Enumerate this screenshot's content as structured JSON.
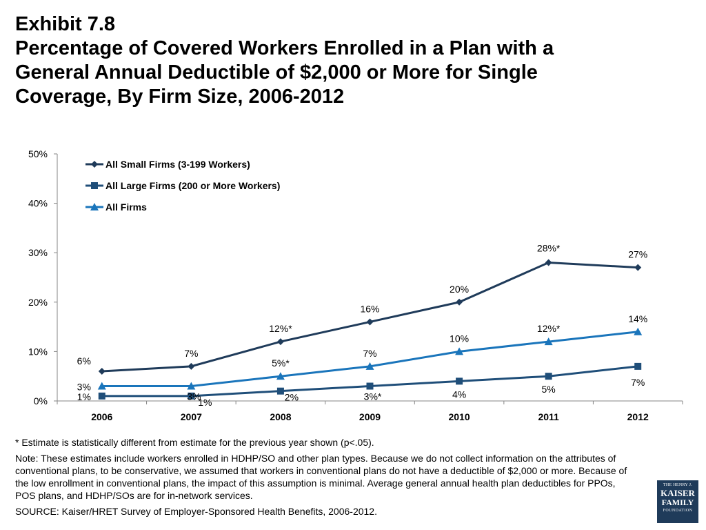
{
  "title": {
    "line1": "Exhibit 7.8",
    "line2": "Percentage of Covered Workers Enrolled in a Plan with a",
    "line3": "General Annual Deductible of $2,000 or More for Single",
    "line4": "Coverage, By Firm Size, 2006-2012"
  },
  "chart_data": {
    "type": "line",
    "categories": [
      "2006",
      "2007",
      "2008",
      "2009",
      "2010",
      "2011",
      "2012"
    ],
    "ylim": [
      0,
      50
    ],
    "yticks": [
      "0%",
      "10%",
      "20%",
      "30%",
      "40%",
      "50%"
    ],
    "legend_position": "top-left",
    "grid": false,
    "series": [
      {
        "name": "All Small Firms (3-199 Workers)",
        "color": "#1f3b5a",
        "marker": "diamond",
        "values": [
          6,
          7,
          12,
          16,
          20,
          28,
          27
        ],
        "labels": [
          "6%",
          "7%",
          "12%*",
          "16%",
          "20%",
          "28%*",
          "27%"
        ]
      },
      {
        "name": "All Large Firms (200 or More Workers)",
        "color": "#1f4e79",
        "marker": "square",
        "values": [
          1,
          1,
          2,
          3,
          4,
          5,
          7
        ],
        "labels": [
          "1%",
          "1%",
          "2%",
          "3%*",
          "4%",
          "5%",
          "7%"
        ]
      },
      {
        "name": "All Firms",
        "color": "#1a75bb",
        "marker": "triangle",
        "values": [
          3,
          3,
          5,
          7,
          10,
          12,
          14
        ],
        "labels": [
          "3%",
          "3%",
          "5%*",
          "7%",
          "10%",
          "12%*",
          "14%"
        ]
      }
    ]
  },
  "notes": {
    "footnote": "* Estimate is statistically different from estimate for the previous year shown (p<.05).",
    "note": "Note: These estimates include workers enrolled in HDHP/SO and other plan types.  Because we do not collect information on the attributes of conventional plans, to be conservative, we assumed that workers in conventional plans do not have a deductible of $2,000 or more.  Because of the low enrollment in conventional plans, the impact of this assumption is minimal. Average general annual health plan deductibles for PPOs, POS plans, and HDHP/SOs are for in-network services.",
    "source": "SOURCE: Kaiser/HRET Survey of Employer-Sponsored Health Benefits, 2006-2012."
  },
  "logo": {
    "line1": "THE HENRY J.",
    "line2": "KAISER",
    "line3": "FAMILY",
    "line4": "FOUNDATION"
  }
}
